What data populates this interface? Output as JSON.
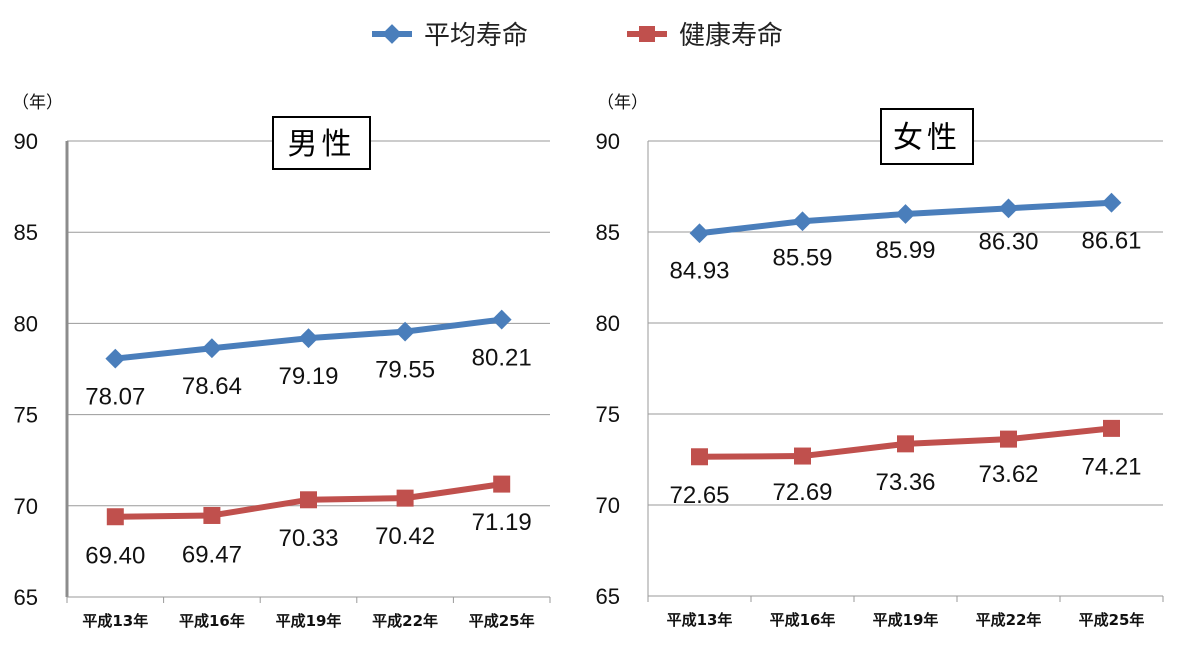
{
  "legend": [
    {
      "label": "平均寿命",
      "color": "#4a7ebb",
      "marker": "diamond"
    },
    {
      "label": "健康寿命",
      "color": "#c0504d",
      "marker": "square"
    }
  ],
  "chart_data": [
    {
      "type": "line",
      "title": "男性",
      "unit_label": "（年）",
      "categories": [
        "平成13年",
        "平成16年",
        "平成19年",
        "平成22年",
        "平成25年"
      ],
      "ylim": [
        65,
        90
      ],
      "yticks": [
        65,
        70,
        75,
        80,
        85,
        90
      ],
      "grid": true,
      "series": [
        {
          "name": "平均寿命",
          "values": [
            78.07,
            78.64,
            79.19,
            79.55,
            80.21
          ]
        },
        {
          "name": "健康寿命",
          "values": [
            69.4,
            69.47,
            70.33,
            70.42,
            71.19
          ]
        }
      ],
      "labels": [
        [
          "78.07",
          "78.64",
          "79.19",
          "79.55",
          "80.21"
        ],
        [
          "69.40",
          "69.47",
          "70.33",
          "70.42",
          "71.19"
        ]
      ]
    },
    {
      "type": "line",
      "title": "女性",
      "unit_label": "（年）",
      "categories": [
        "平成13年",
        "平成16年",
        "平成19年",
        "平成22年",
        "平成25年"
      ],
      "ylim": [
        65,
        90
      ],
      "yticks": [
        65,
        70,
        75,
        80,
        85,
        90
      ],
      "grid": true,
      "series": [
        {
          "name": "平均寿命",
          "values": [
            84.93,
            85.59,
            85.99,
            86.3,
            86.61
          ]
        },
        {
          "name": "健康寿命",
          "values": [
            72.65,
            72.69,
            73.36,
            73.62,
            74.21
          ]
        }
      ],
      "labels": [
        [
          "84.93",
          "85.59",
          "85.99",
          "86.30",
          "86.61"
        ],
        [
          "72.65",
          "72.69",
          "73.36",
          "73.62",
          "74.21"
        ]
      ]
    }
  ]
}
